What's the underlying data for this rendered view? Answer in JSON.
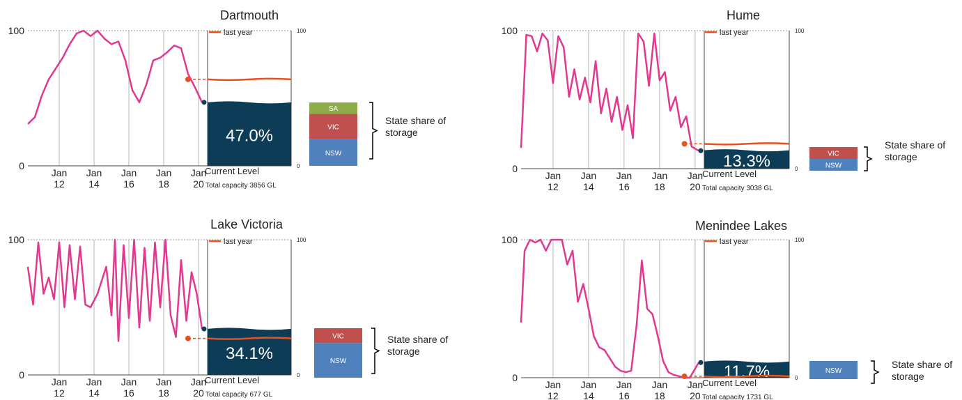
{
  "colors": {
    "history": "#e2388f",
    "last_year": "#e8501c",
    "current_fill": "#0d3d56",
    "SA": "#8fac4a",
    "VIC": "#c0504d",
    "NSW": "#4f81bd",
    "grid": "#999999"
  },
  "legend": {
    "last_year": "last year"
  },
  "labels": {
    "current_level": "Current Level",
    "state_share": [
      "State share of",
      "storage"
    ]
  },
  "chart_data": [
    {
      "type": "line",
      "title": "Dartmouth",
      "x_ticks": [
        [
          "Jan",
          "12"
        ],
        [
          "Jan",
          "14"
        ],
        [
          "Jan",
          "16"
        ],
        [
          "Jan",
          "18"
        ],
        [
          "Jan",
          "20"
        ]
      ],
      "x_range": [
        2010.0,
        2020.0
      ],
      "ylim": [
        0,
        100
      ],
      "y_ticks": [
        "0",
        "100"
      ],
      "right_ticks": [
        "0",
        "100"
      ],
      "series": [
        {
          "key": "history",
          "x": [
            2010.0,
            2010.4,
            2010.8,
            2011.2,
            2011.6,
            2012.0,
            2012.4,
            2012.8,
            2013.2,
            2013.6,
            2014.0,
            2014.4,
            2014.8,
            2015.2,
            2015.6,
            2016.0,
            2016.4,
            2016.8,
            2017.2,
            2017.6,
            2018.0,
            2018.4,
            2018.8,
            2019.2,
            2019.6,
            2020.0
          ],
          "y": [
            31,
            36,
            52,
            64,
            72,
            80,
            90,
            98,
            100,
            96,
            100,
            94,
            90,
            92,
            78,
            56,
            47,
            60,
            78,
            80,
            84,
            89,
            87,
            68,
            58,
            47
          ]
        },
        {
          "key": "last_year",
          "x": [
            2019.2,
            2021.5
          ],
          "y": [
            64,
            64
          ]
        }
      ],
      "current_level": "47.0%",
      "current_value": 47.0,
      "total_capacity": "Total capacity 3856 GL",
      "state_share": [
        {
          "label": "SA",
          "value": 18
        },
        {
          "label": "VIC",
          "value": 40
        },
        {
          "label": "NSW",
          "value": 42
        }
      ]
    },
    {
      "type": "line",
      "title": "Hume",
      "x_ticks": [
        [
          "Jan",
          "12"
        ],
        [
          "Jan",
          "14"
        ],
        [
          "Jan",
          "16"
        ],
        [
          "Jan",
          "18"
        ],
        [
          "Jan",
          "20"
        ]
      ],
      "x_range": [
        2010.0,
        2020.0
      ],
      "ylim": [
        0,
        100
      ],
      "y_ticks": [
        "0",
        "100"
      ],
      "right_ticks": [
        "0",
        "100"
      ],
      "series": [
        {
          "key": "history",
          "x": [
            2010.0,
            2010.3,
            2010.6,
            2010.9,
            2011.2,
            2011.5,
            2011.8,
            2012.1,
            2012.4,
            2012.7,
            2013.0,
            2013.3,
            2013.6,
            2013.9,
            2014.2,
            2014.5,
            2014.8,
            2015.1,
            2015.4,
            2015.7,
            2016.0,
            2016.3,
            2016.6,
            2016.9,
            2017.2,
            2017.5,
            2017.8,
            2018.1,
            2018.4,
            2018.7,
            2019.0,
            2019.3,
            2019.6,
            2020.0
          ],
          "y": [
            15,
            97,
            96,
            85,
            98,
            93,
            62,
            96,
            88,
            52,
            72,
            50,
            66,
            48,
            78,
            40,
            58,
            34,
            52,
            28,
            46,
            22,
            98,
            92,
            60,
            98,
            64,
            70,
            42,
            52,
            30,
            38,
            16,
            13
          ]
        },
        {
          "key": "last_year",
          "x": [
            2019.2,
            2021.5
          ],
          "y": [
            18,
            18
          ]
        }
      ],
      "current_level": "13.3%",
      "current_value": 13.3,
      "total_capacity": "Total capacity 3038 GL",
      "state_share": [
        {
          "label": "VIC",
          "value": 50
        },
        {
          "label": "NSW",
          "value": 50
        }
      ]
    },
    {
      "type": "line",
      "title": "Lake Victoria",
      "x_ticks": [
        [
          "Jan",
          "12"
        ],
        [
          "Jan",
          "14"
        ],
        [
          "Jan",
          "16"
        ],
        [
          "Jan",
          "18"
        ],
        [
          "Jan",
          "20"
        ]
      ],
      "x_range": [
        2010.0,
        2020.0
      ],
      "ylim": [
        0,
        100
      ],
      "y_ticks": [
        "0",
        "100"
      ],
      "right_ticks": [
        "0",
        "100"
      ],
      "series": [
        {
          "key": "history",
          "x": [
            2010.0,
            2010.3,
            2010.6,
            2010.9,
            2011.2,
            2011.5,
            2011.8,
            2012.1,
            2012.4,
            2012.7,
            2013.0,
            2013.3,
            2013.6,
            2014.0,
            2014.5,
            2014.8,
            2015.0,
            2015.2,
            2015.5,
            2015.8,
            2016.1,
            2016.4,
            2016.7,
            2017.0,
            2017.3,
            2017.6,
            2017.9,
            2018.2,
            2018.5,
            2018.8,
            2019.1,
            2019.4,
            2019.7,
            2020.0
          ],
          "y": [
            80,
            52,
            98,
            60,
            72,
            56,
            98,
            50,
            96,
            56,
            95,
            52,
            50,
            60,
            80,
            44,
            100,
            25,
            96,
            42,
            100,
            35,
            94,
            40,
            98,
            50,
            100,
            44,
            28,
            85,
            40,
            76,
            60,
            34
          ]
        },
        {
          "key": "last_year",
          "x": [
            2019.2,
            2021.5
          ],
          "y": [
            27,
            27
          ]
        }
      ],
      "current_level": "34.1%",
      "current_value": 34.1,
      "total_capacity": "Total capacity 677 GL",
      "state_share": [
        {
          "label": "VIC",
          "value": 30
        },
        {
          "label": "NSW",
          "value": 70
        }
      ]
    },
    {
      "type": "line",
      "title": "Menindee Lakes",
      "x_ticks": [
        [
          "Jan",
          "12"
        ],
        [
          "Jan",
          "14"
        ],
        [
          "Jan",
          "16"
        ],
        [
          "Jan",
          "18"
        ],
        [
          "Jan",
          "20"
        ]
      ],
      "x_range": [
        2010.0,
        2020.0
      ],
      "ylim": [
        0,
        100
      ],
      "y_ticks": [
        "0",
        "100"
      ],
      "right_ticks": [
        "0",
        "100"
      ],
      "series": [
        {
          "key": "history",
          "x": [
            2010.0,
            2010.2,
            2010.5,
            2010.8,
            2011.1,
            2011.4,
            2011.7,
            2012.0,
            2012.3,
            2012.6,
            2012.9,
            2013.2,
            2013.5,
            2013.8,
            2014.1,
            2014.4,
            2014.7,
            2015.0,
            2015.3,
            2015.6,
            2015.9,
            2016.2,
            2016.5,
            2016.8,
            2017.1,
            2017.4,
            2017.7,
            2018.0,
            2018.3,
            2018.6,
            2018.9,
            2019.2,
            2019.5,
            2020.0
          ],
          "y": [
            40,
            92,
            100,
            98,
            100,
            92,
            100,
            100,
            100,
            82,
            92,
            55,
            68,
            50,
            30,
            22,
            20,
            14,
            8,
            5,
            4,
            5,
            38,
            85,
            50,
            46,
            30,
            12,
            4,
            2,
            1,
            0,
            0,
            11
          ]
        },
        {
          "key": "last_year",
          "x": [
            2019.2,
            2021.5
          ],
          "y": [
            1,
            1
          ]
        }
      ],
      "current_level": "11.7%",
      "current_value": 11.7,
      "total_capacity": "Total capacity 1731 GL",
      "state_share": [
        {
          "label": "NSW",
          "value": 100
        }
      ]
    }
  ]
}
